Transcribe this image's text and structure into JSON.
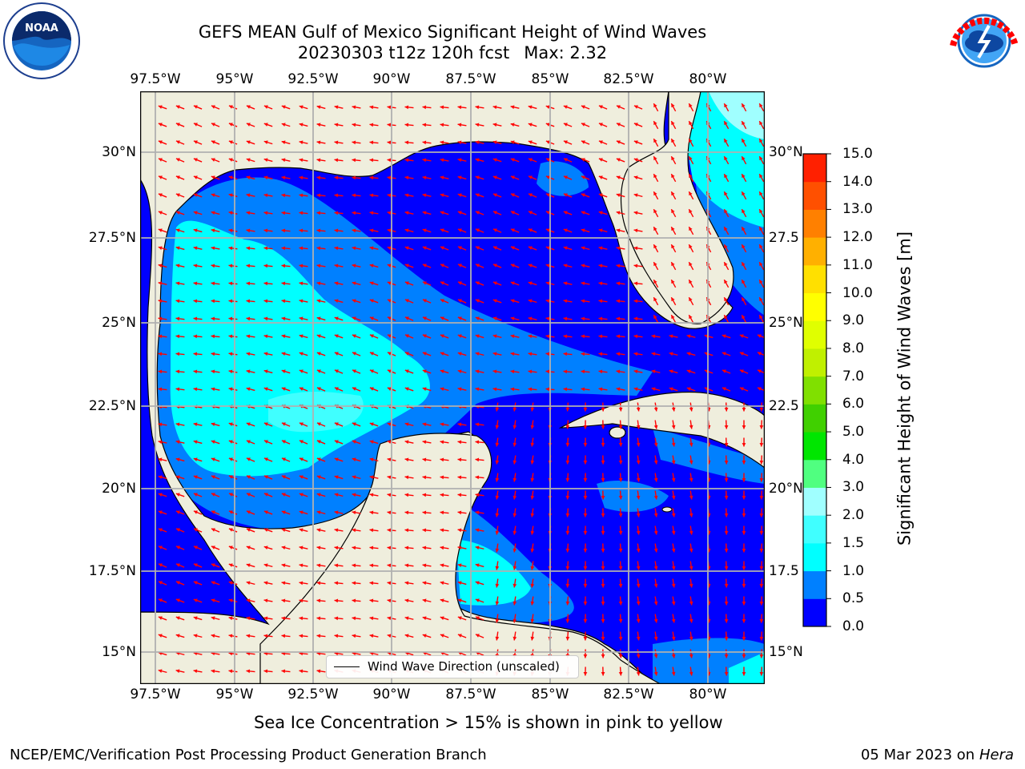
{
  "title_line1": "GEFS MEAN Gulf of Mexico Significant Height of Wind Waves",
  "title_line2_date": "20230303 t12z 120h fcst",
  "title_line2_max": "Max: 2.32",
  "lon_labels": [
    "97.5°W",
    "95°W",
    "92.5°W",
    "90°W",
    "87.5°W",
    "85°W",
    "82.5°W",
    "80°W"
  ],
  "lat_labels": [
    "30°N",
    "27.5°N",
    "25°N",
    "22.5°N",
    "20°N",
    "17.5°N",
    "15°N"
  ],
  "lat_labels_right": [
    "30°N",
    "27.5",
    "25°N",
    "22.5",
    "20°N",
    "17.5",
    "15°N"
  ],
  "colorbar": {
    "title": "Significant Height of Wind Waves [m]",
    "labels": [
      "0.0",
      "0.5",
      "1.0",
      "1.5",
      "2.0",
      "3.0",
      "4.0",
      "5.0",
      "6.0",
      "7.0",
      "8.0",
      "9.0",
      "10.0",
      "11.0",
      "12.0",
      "13.0",
      "14.0",
      "15.0"
    ],
    "colors": [
      "#0000ff",
      "#0080ff",
      "#00ffff",
      "#40ffff",
      "#a0ffff",
      "#50ff80",
      "#00e600",
      "#40d000",
      "#80e000",
      "#c0f000",
      "#e0ff00",
      "#ffff00",
      "#ffe000",
      "#ffb000",
      "#ff8000",
      "#ff5000",
      "#ff2000",
      "#ff0000"
    ]
  },
  "legend_label": "Wind Wave Direction (unscaled)",
  "sea_ice_note": "Sea Ice Concentration > 15% is shown in pink to yellow",
  "footer_left": "NCEP/EMC/Verification Post Processing Product Generation Branch",
  "footer_right_date": "05 Mar 2023 on",
  "footer_right_machine": "Hera",
  "colors": {
    "land": "#efeedd",
    "arrow": "#ff0000",
    "grid": "#b0b0b0"
  },
  "logos": {
    "left": "noaa-logo",
    "left_text": "NOAA",
    "right": "nws-logo",
    "right_text": "NATIONAL WEATHER SERVICE"
  }
}
